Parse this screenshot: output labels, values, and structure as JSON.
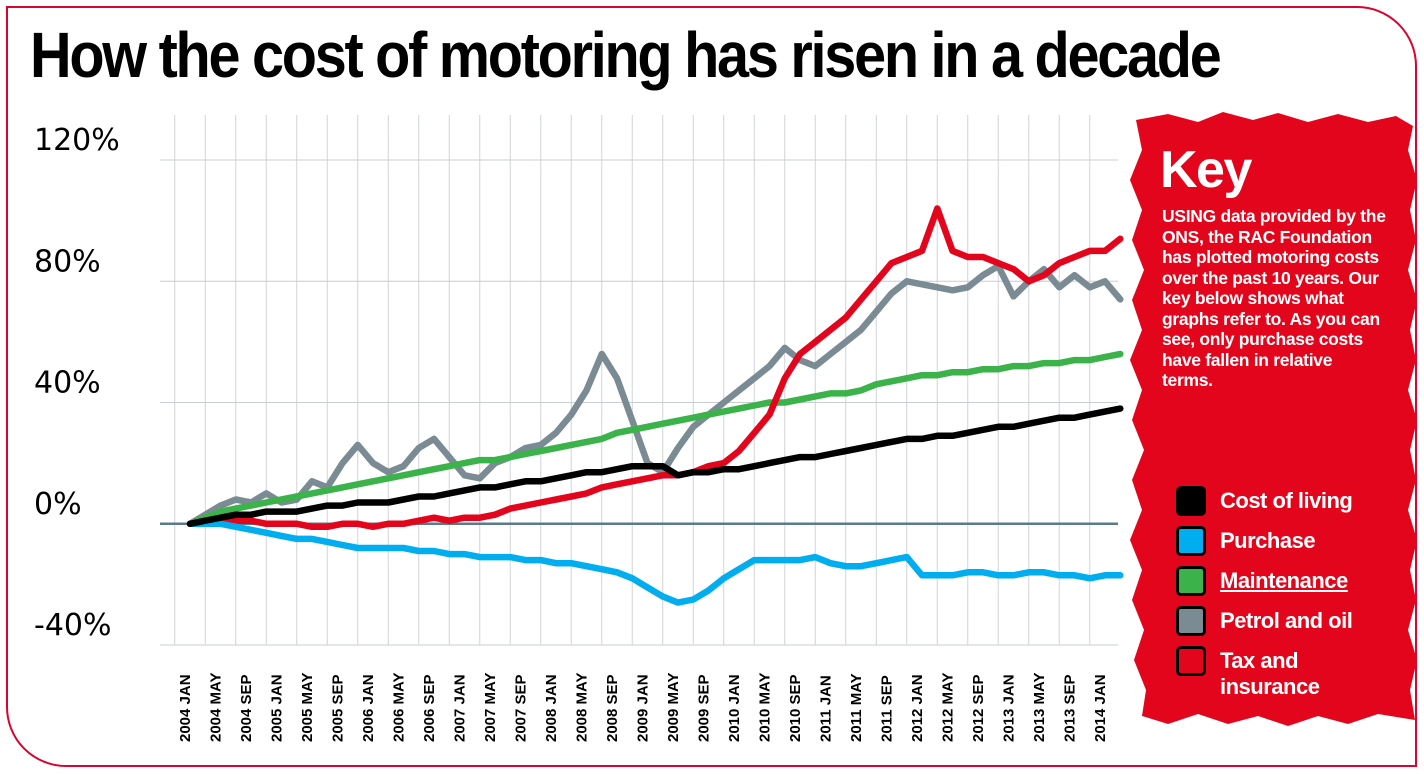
{
  "title": "How the cost of motoring has risen in a decade",
  "key": {
    "title": "Key",
    "description": "USING data provided by the ONS, the RAC Foundation has plotted motoring costs over the past 10 years. Our key below shows what graphs refer to. As you can see, only purchase costs have fallen in relative terms."
  },
  "chart_data": {
    "type": "line",
    "title": "How the cost of motoring has risen in a decade",
    "xlabel": "",
    "ylabel": "",
    "ylim": [
      -40,
      120
    ],
    "y_ticks": [
      120,
      80,
      40,
      0,
      -40
    ],
    "y_tick_labels": [
      "120%",
      "80%",
      "40%",
      "0%",
      "-40%"
    ],
    "x_tick_labels": [
      "2004 JAN",
      "2004 MAY",
      "2004 SEP",
      "2005 JAN",
      "2005 MAY",
      "2005 SEP",
      "2006 JAN",
      "2006 MAY",
      "2006 SEP",
      "2007 JAN",
      "2007 MAY",
      "2007 SEP",
      "2008 JAN",
      "2008 MAY",
      "2008 SEP",
      "2009 JAN",
      "2009 MAY",
      "2009 SEP",
      "2010 JAN",
      "2010 MAY",
      "2010 SEP",
      "2011 JAN",
      "2011 MAY",
      "2011 SEP",
      "2012 JAN",
      "2012 MAY",
      "2012 SEP",
      "2013 JAN",
      "2013 MAY",
      "2013 SEP",
      "2014 JAN"
    ],
    "x": [
      "2004-01",
      "2004-03",
      "2004-05",
      "2004-07",
      "2004-09",
      "2004-11",
      "2005-01",
      "2005-03",
      "2005-05",
      "2005-07",
      "2005-09",
      "2005-11",
      "2006-01",
      "2006-03",
      "2006-05",
      "2006-07",
      "2006-09",
      "2006-11",
      "2007-01",
      "2007-03",
      "2007-05",
      "2007-07",
      "2007-09",
      "2007-11",
      "2008-01",
      "2008-03",
      "2008-05",
      "2008-07",
      "2008-09",
      "2008-11",
      "2009-01",
      "2009-03",
      "2009-05",
      "2009-07",
      "2009-09",
      "2009-11",
      "2010-01",
      "2010-03",
      "2010-05",
      "2010-07",
      "2010-09",
      "2010-11",
      "2011-01",
      "2011-03",
      "2011-05",
      "2011-07",
      "2011-09",
      "2011-11",
      "2012-01",
      "2012-03",
      "2012-05",
      "2012-07",
      "2012-09",
      "2012-11",
      "2013-01",
      "2013-03",
      "2013-05",
      "2013-07",
      "2013-09",
      "2013-11",
      "2014-01",
      "2014-03"
    ],
    "series": [
      {
        "name": "Cost of living",
        "color": "#000000",
        "values": [
          0,
          1,
          2,
          3,
          3,
          4,
          4,
          4,
          5,
          6,
          6,
          7,
          7,
          7,
          8,
          9,
          9,
          10,
          11,
          12,
          12,
          13,
          14,
          14,
          15,
          16,
          17,
          17,
          18,
          19,
          19,
          19,
          16,
          17,
          17,
          18,
          18,
          19,
          20,
          21,
          22,
          22,
          23,
          24,
          25,
          26,
          27,
          28,
          28,
          29,
          29,
          30,
          31,
          32,
          32,
          33,
          34,
          35,
          35,
          36,
          37,
          38
        ]
      },
      {
        "name": "Purchase",
        "color": "#00aeef",
        "values": [
          0,
          0,
          0,
          -1,
          -2,
          -3,
          -4,
          -5,
          -5,
          -6,
          -7,
          -8,
          -8,
          -8,
          -8,
          -9,
          -9,
          -10,
          -10,
          -11,
          -11,
          -11,
          -12,
          -12,
          -13,
          -13,
          -14,
          -15,
          -16,
          -18,
          -21,
          -24,
          -26,
          -25,
          -22,
          -18,
          -15,
          -12,
          -12,
          -12,
          -12,
          -11,
          -13,
          -14,
          -14,
          -13,
          -12,
          -11,
          -17,
          -17,
          -17,
          -16,
          -16,
          -17,
          -17,
          -16,
          -16,
          -17,
          -17,
          -18,
          -17,
          -17
        ]
      },
      {
        "name": "Maintenance",
        "color": "#3cb34a",
        "values": [
          0,
          2,
          4,
          5,
          6,
          7,
          8,
          9,
          10,
          11,
          12,
          13,
          14,
          15,
          16,
          17,
          18,
          19,
          20,
          21,
          21,
          22,
          23,
          24,
          25,
          26,
          27,
          28,
          30,
          31,
          32,
          33,
          34,
          35,
          36,
          37,
          38,
          39,
          40,
          40,
          41,
          42,
          43,
          43,
          44,
          46,
          47,
          48,
          49,
          49,
          50,
          50,
          51,
          51,
          52,
          52,
          53,
          53,
          54,
          54,
          55,
          56
        ]
      },
      {
        "name": "Petrol and oil",
        "color": "#7a8b94",
        "values": [
          0,
          3,
          6,
          8,
          7,
          10,
          7,
          8,
          14,
          12,
          20,
          26,
          20,
          17,
          19,
          25,
          28,
          22,
          16,
          15,
          20,
          22,
          25,
          26,
          30,
          36,
          44,
          56,
          48,
          34,
          20,
          17,
          25,
          32,
          36,
          40,
          44,
          48,
          52,
          58,
          54,
          52,
          56,
          60,
          64,
          70,
          76,
          80,
          79,
          78,
          77,
          78,
          82,
          85,
          75,
          80,
          84,
          78,
          82,
          78,
          80,
          74
        ]
      },
      {
        "name": "Tax and insurance",
        "color": "#e3051b",
        "values": [
          0,
          0,
          0,
          1,
          1,
          0,
          0,
          0,
          -1,
          -1,
          0,
          0,
          -1,
          0,
          0,
          1,
          2,
          1,
          2,
          2,
          3,
          5,
          6,
          7,
          8,
          9,
          10,
          12,
          13,
          14,
          15,
          16,
          16,
          17,
          19,
          20,
          24,
          30,
          36,
          48,
          56,
          60,
          64,
          68,
          74,
          80,
          86,
          88,
          90,
          104,
          90,
          88,
          88,
          86,
          84,
          80,
          82,
          86,
          88,
          90,
          90,
          94
        ]
      }
    ],
    "grid": true,
    "legend": "right"
  }
}
